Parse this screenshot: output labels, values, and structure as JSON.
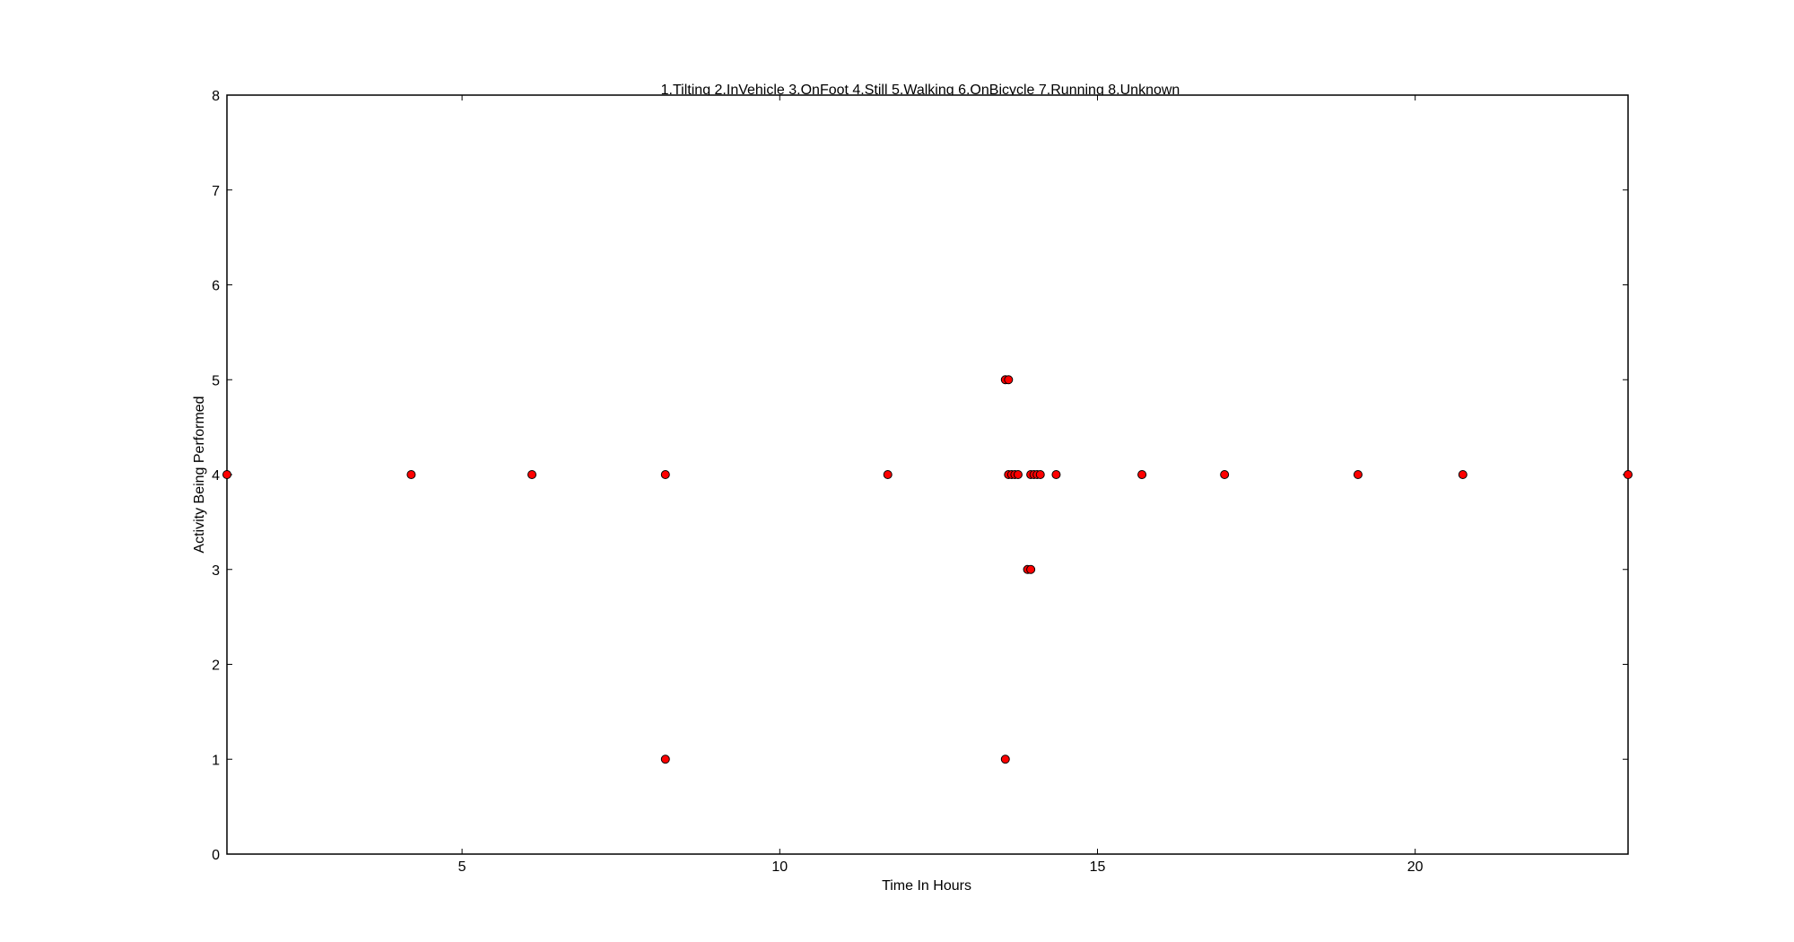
{
  "chart_data": {
    "type": "scatter",
    "title": "1.Tilting 2.InVehicle 3.OnFoot 4.Still 5.Walking 6.OnBicycle 7.Running 8.Unknown",
    "xlabel": "Time In Hours",
    "ylabel": "Activity Being Performed",
    "xlim": [
      1.3,
      23.35
    ],
    "ylim": [
      0,
      8
    ],
    "x_ticks": [
      5,
      10,
      15,
      20
    ],
    "y_ticks": [
      0,
      1,
      2,
      3,
      4,
      5,
      6,
      7,
      8
    ],
    "grid": false,
    "marker_color": "#ff0000",
    "marker_edge": "#000000",
    "points": [
      {
        "x": 1.3,
        "y": 4
      },
      {
        "x": 4.2,
        "y": 4
      },
      {
        "x": 6.1,
        "y": 4
      },
      {
        "x": 8.2,
        "y": 4
      },
      {
        "x": 8.2,
        "y": 1
      },
      {
        "x": 11.7,
        "y": 4
      },
      {
        "x": 13.55,
        "y": 5
      },
      {
        "x": 13.6,
        "y": 5
      },
      {
        "x": 13.55,
        "y": 1
      },
      {
        "x": 13.6,
        "y": 4
      },
      {
        "x": 13.65,
        "y": 4
      },
      {
        "x": 13.7,
        "y": 4
      },
      {
        "x": 13.75,
        "y": 4
      },
      {
        "x": 13.9,
        "y": 3
      },
      {
        "x": 13.95,
        "y": 3
      },
      {
        "x": 13.95,
        "y": 4
      },
      {
        "x": 14.0,
        "y": 4
      },
      {
        "x": 14.05,
        "y": 4
      },
      {
        "x": 14.1,
        "y": 4
      },
      {
        "x": 14.35,
        "y": 4
      },
      {
        "x": 15.7,
        "y": 4
      },
      {
        "x": 17.0,
        "y": 4
      },
      {
        "x": 19.1,
        "y": 4
      },
      {
        "x": 20.75,
        "y": 4
      },
      {
        "x": 23.35,
        "y": 4
      }
    ]
  }
}
